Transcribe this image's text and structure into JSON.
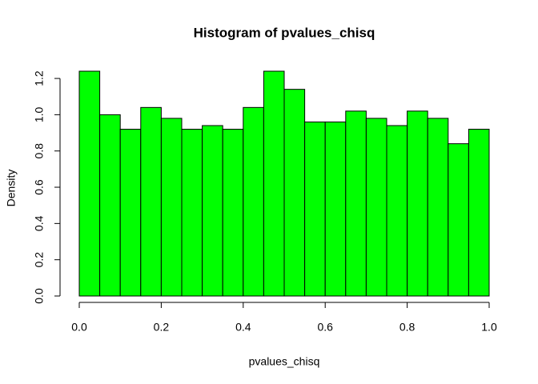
{
  "chart_data": {
    "type": "histogram",
    "title": "Histogram of pvalues_chisq",
    "x_label": "pvalues_chisq",
    "y_label": "Density",
    "bins": [
      0,
      0.05,
      0.1,
      0.15,
      0.2,
      0.25,
      0.3,
      0.35,
      0.4,
      0.45,
      0.5,
      0.55,
      0.6,
      0.65,
      0.7,
      0.75,
      0.8,
      0.85,
      0.9,
      0.95,
      1.0
    ],
    "values": [
      1.24,
      1.0,
      0.92,
      1.04,
      0.98,
      0.92,
      0.94,
      0.92,
      1.04,
      1.24,
      1.14,
      0.96,
      0.96,
      1.02,
      0.98,
      0.94,
      1.02,
      0.98,
      0.84,
      0.92
    ],
    "color": "#00ff00",
    "xlim": [
      0,
      1
    ],
    "ylim": [
      0,
      1.24
    ],
    "xticks": [
      {
        "value": 0,
        "label": "0.0"
      },
      0.2,
      0.4,
      0.6,
      0.8,
      {
        "value": 1,
        "label": "1.0"
      }
    ],
    "yticks": [
      {
        "value": 0,
        "label": "0.0"
      },
      0.2,
      0.4,
      0.6,
      0.8,
      {
        "value": 1,
        "label": "1.0"
      },
      1.2
    ]
  }
}
